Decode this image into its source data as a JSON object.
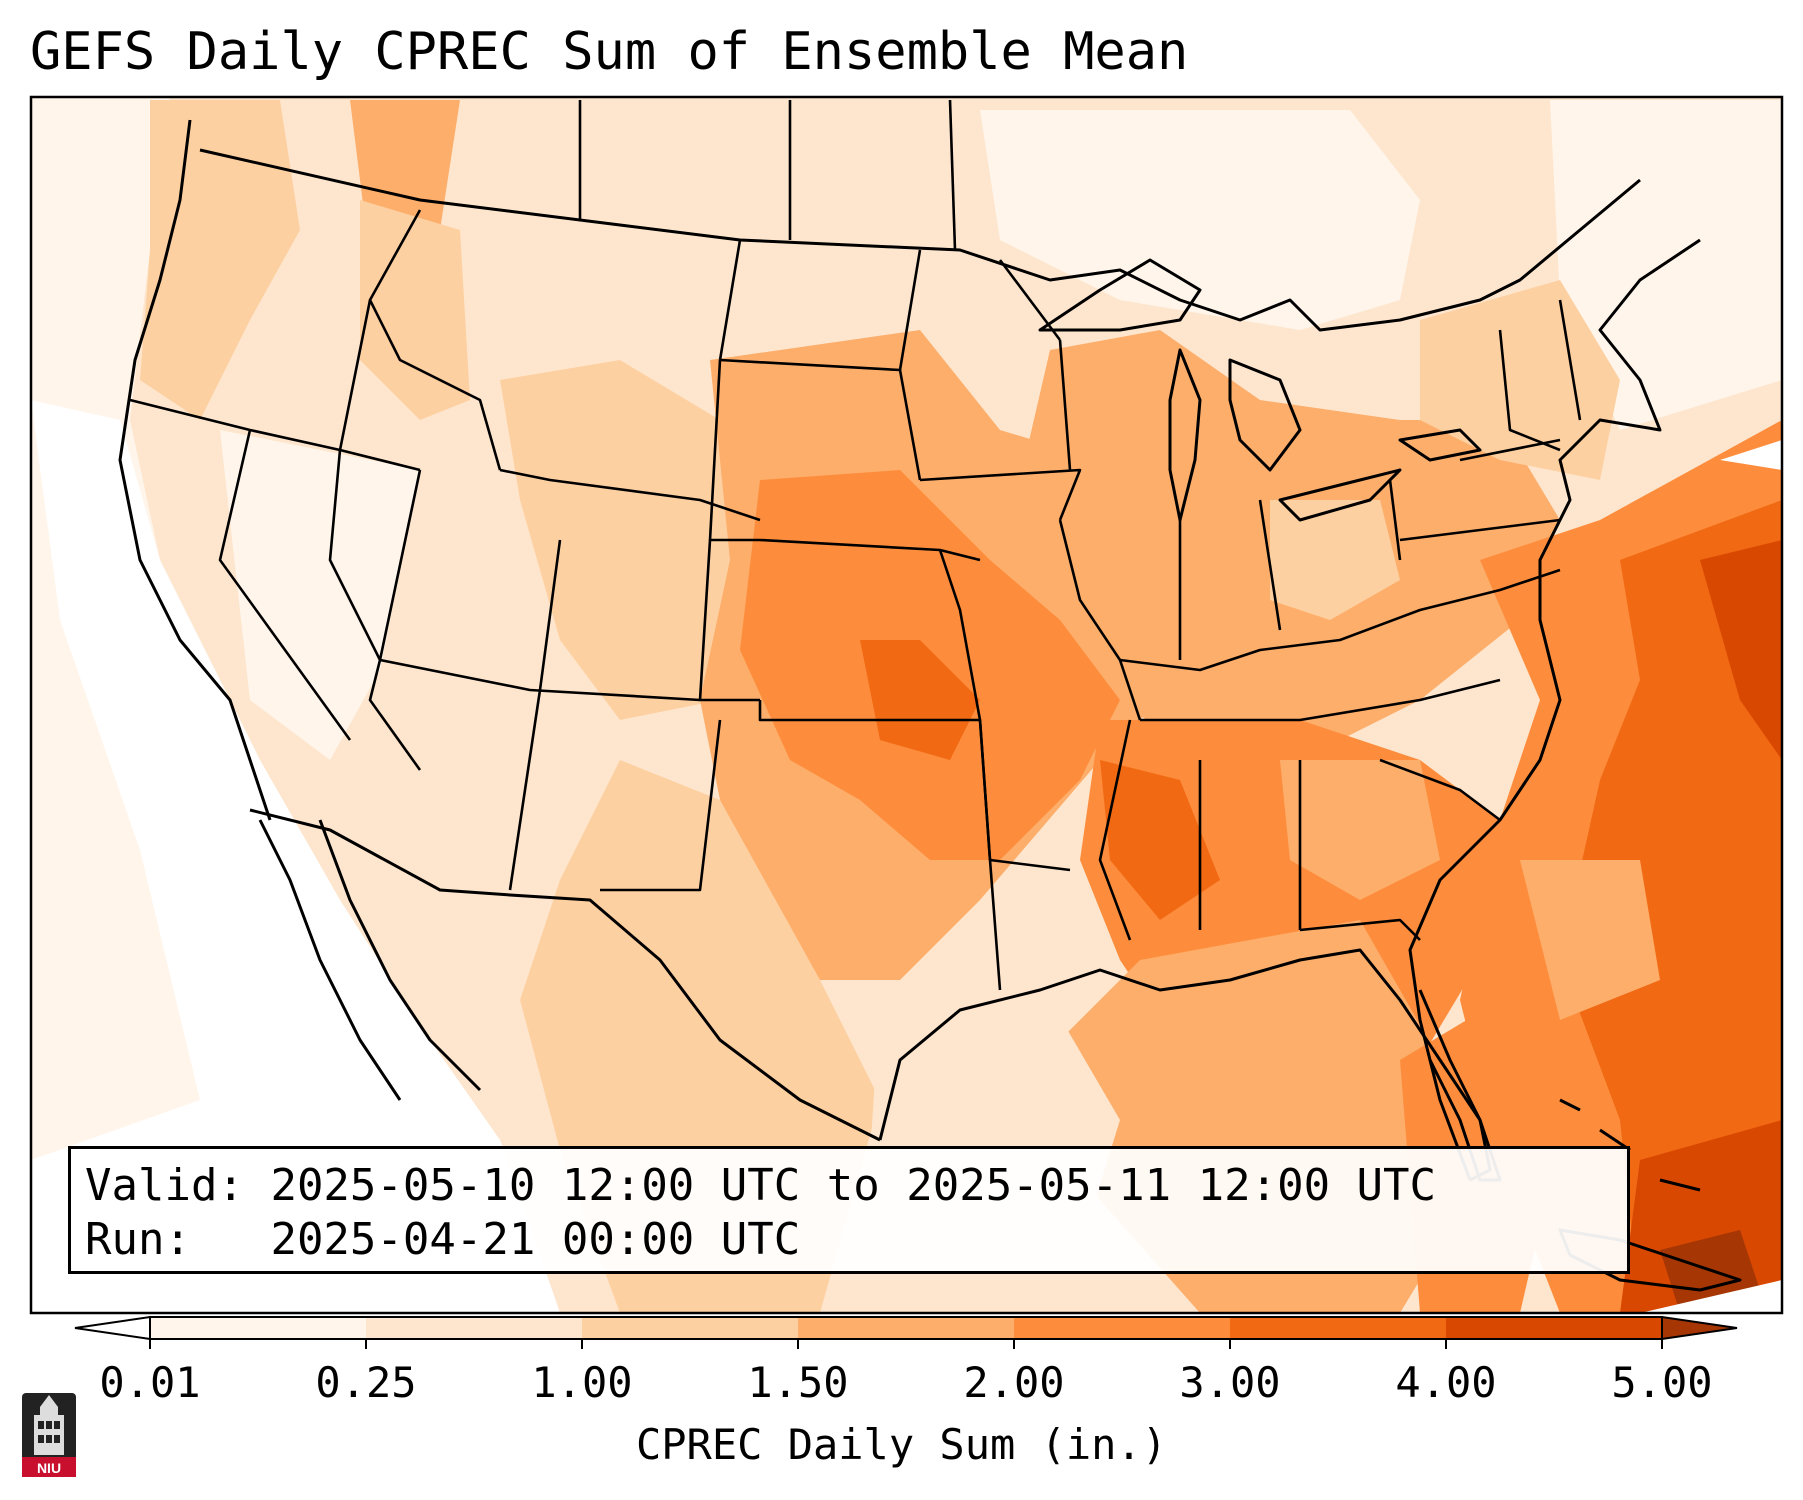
{
  "title": "GEFS Daily CPREC Sum of Ensemble Mean",
  "info": {
    "valid_label": "Valid:",
    "valid_value": "2025-05-10 12:00 UTC to 2025-05-11 12:00 UTC",
    "run_label": "Run:",
    "run_value": "2025-04-21 00:00 UTC"
  },
  "colorbar": {
    "label": "CPREC Daily Sum (in.)",
    "ticks": [
      "0.01",
      "0.25",
      "1.00",
      "1.50",
      "2.00",
      "3.00",
      "4.00",
      "5.00"
    ],
    "colors": [
      "#fff5eb",
      "#fee6ce",
      "#fdd0a2",
      "#fdae6b",
      "#fd8d3c",
      "#f16913",
      "#d94801"
    ],
    "under_color": "#ffffff",
    "over_color": "#a63603",
    "extend": "both"
  },
  "logo": {
    "text": "NIU",
    "icon": "university-tower-icon",
    "color": "#c8102e"
  }
}
